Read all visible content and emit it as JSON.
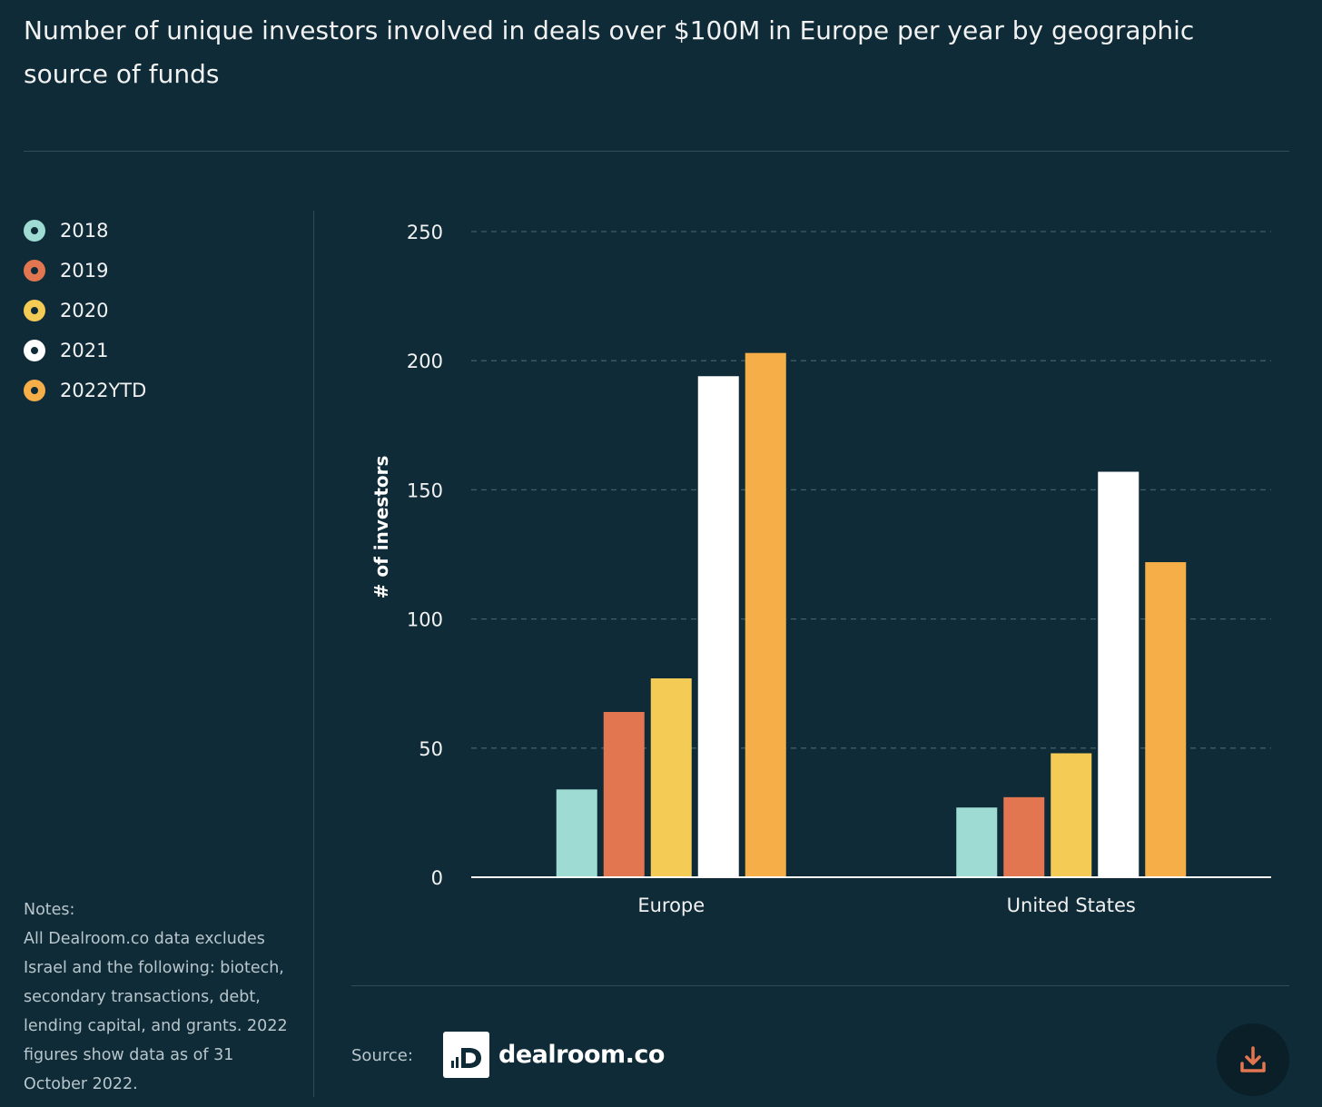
{
  "title": "Number of unique investors involved in deals over $100M in Europe per year by geographic source of funds",
  "legend": [
    {
      "label": "2018",
      "color": "#9edcd3"
    },
    {
      "label": "2019",
      "color": "#e27650"
    },
    {
      "label": "2020",
      "color": "#f3cb55"
    },
    {
      "label": "2021",
      "color": "#ffffff"
    },
    {
      "label": "2022YTD",
      "color": "#f5ae48"
    }
  ],
  "notes": {
    "heading": "Notes:",
    "body": "All Dealroom.co data excludes Israel and the following: biotech, secondary transactions, debt, lending capital, and grants. 2022 figures show data as of 31 October 2022."
  },
  "source": {
    "label": "Source:",
    "logo_text": "dealroom.co",
    "logo_icon": "dealroom-logo-icon"
  },
  "download": {
    "icon": "download-icon",
    "color": "#e27650"
  },
  "chart_data": {
    "type": "bar",
    "categories": [
      "Europe",
      "United States"
    ],
    "series": [
      {
        "name": "2018",
        "values": [
          34,
          27
        ],
        "color": "#9edcd3"
      },
      {
        "name": "2019",
        "values": [
          64,
          31
        ],
        "color": "#e27650"
      },
      {
        "name": "2020",
        "values": [
          77,
          48
        ],
        "color": "#f3cb55"
      },
      {
        "name": "2021",
        "values": [
          194,
          157
        ],
        "color": "#ffffff"
      },
      {
        "name": "2022YTD",
        "values": [
          203,
          122
        ],
        "color": "#f5ae48"
      }
    ],
    "ylabel": "# of investors",
    "xlabel": "",
    "ylim": [
      0,
      250
    ],
    "yticks": [
      0,
      50,
      100,
      150,
      200,
      250
    ],
    "grid": true
  }
}
